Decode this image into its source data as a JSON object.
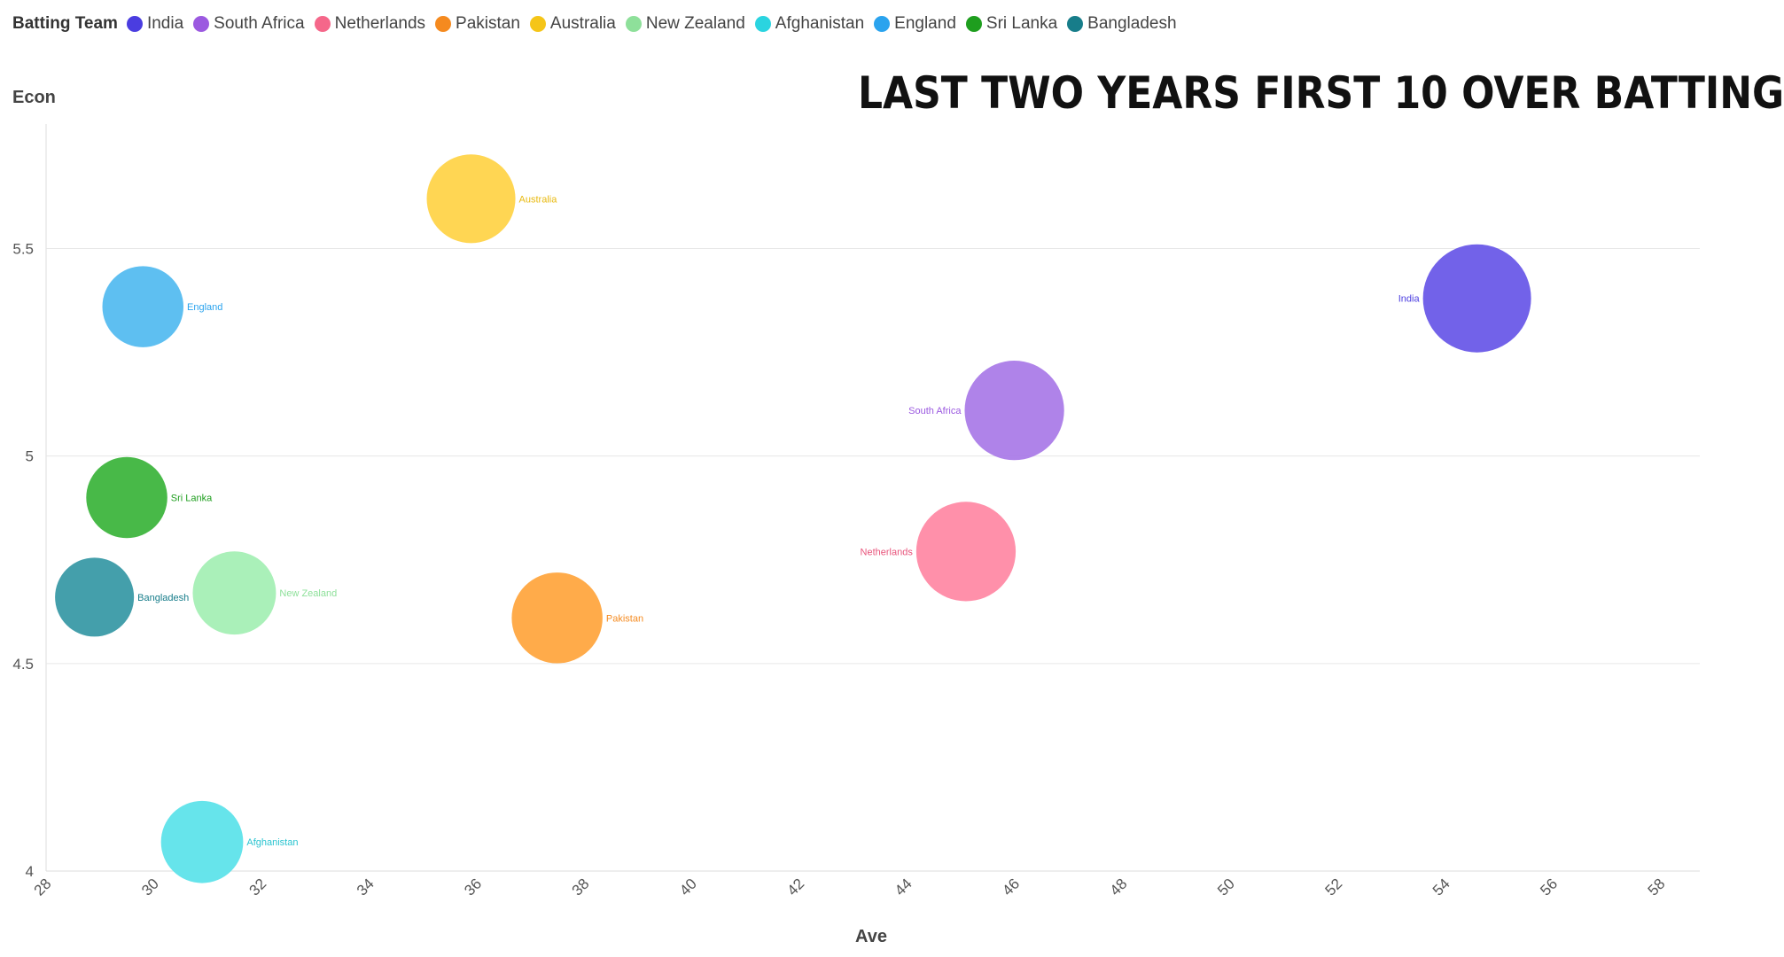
{
  "legend": {
    "title": "Batting Team",
    "items": [
      {
        "label": "India",
        "color": "#4a3de0"
      },
      {
        "label": "South Africa",
        "color": "#9b59e0"
      },
      {
        "label": "Netherlands",
        "color": "#f5678a"
      },
      {
        "label": "Pakistan",
        "color": "#f58a1f"
      },
      {
        "label": "Australia",
        "color": "#f5c518"
      },
      {
        "label": "New Zealand",
        "color": "#8ee09a"
      },
      {
        "label": "Afghanistan",
        "color": "#2ad4e0"
      },
      {
        "label": "England",
        "color": "#2aa3ee"
      },
      {
        "label": "Sri Lanka",
        "color": "#1e9e1e"
      },
      {
        "label": "Bangladesh",
        "color": "#177d8a"
      }
    ]
  },
  "chart_data": {
    "type": "scatter",
    "title": "LAST TWO YEARS FIRST 10 OVER BATTING",
    "xlabel": "Ave",
    "ylabel": "Econ",
    "xlim": [
      28,
      58
    ],
    "ylim": [
      4,
      5.8
    ],
    "xticks": [
      28,
      30,
      32,
      34,
      36,
      38,
      40,
      42,
      44,
      46,
      48,
      50,
      52,
      54,
      56,
      58
    ],
    "yticks": [
      4,
      4.5,
      5,
      5.5
    ],
    "ytick_labels": [
      "4",
      "4.5",
      "5",
      "5.5"
    ],
    "grid": "horizontal",
    "legend_position": "top-left",
    "series": [
      {
        "name": "India",
        "x": 54.6,
        "y": 5.38,
        "size": 1.0,
        "color": "#6a5ae8",
        "label_side": "left"
      },
      {
        "name": "South Africa",
        "x": 46.0,
        "y": 5.11,
        "size": 0.92,
        "color": "#ab7ce8",
        "label_side": "left"
      },
      {
        "name": "Netherlands",
        "x": 45.1,
        "y": 4.77,
        "size": 0.92,
        "color": "#ff8aa5",
        "label_side": "left"
      },
      {
        "name": "Pakistan",
        "x": 37.5,
        "y": 4.61,
        "size": 0.84,
        "color": "#ffa640",
        "label_side": "right"
      },
      {
        "name": "Australia",
        "x": 35.9,
        "y": 5.62,
        "size": 0.82,
        "color": "#ffd44a",
        "label_side": "right"
      },
      {
        "name": "New Zealand",
        "x": 31.5,
        "y": 4.67,
        "size": 0.77,
        "color": "#a5efb5",
        "label_side": "right"
      },
      {
        "name": "Afghanistan",
        "x": 30.9,
        "y": 4.07,
        "size": 0.76,
        "color": "#5ee3ea",
        "label_side": "right"
      },
      {
        "name": "England",
        "x": 29.8,
        "y": 5.36,
        "size": 0.75,
        "color": "#55bcf0",
        "label_side": "right"
      },
      {
        "name": "Sri Lanka",
        "x": 29.5,
        "y": 4.9,
        "size": 0.75,
        "color": "#3eb53e",
        "label_side": "right"
      },
      {
        "name": "Bangladesh",
        "x": 28.9,
        "y": 4.66,
        "size": 0.73,
        "color": "#3a9aa6",
        "label_side": "right"
      }
    ],
    "label_colors": {
      "India": "#4a3de0",
      "South Africa": "#9b59e0",
      "Netherlands": "#e8557c",
      "Pakistan": "#f58a1f",
      "Australia": "#e8b90e",
      "New Zealand": "#8ee09a",
      "Afghanistan": "#2ac4d0",
      "England": "#2aa3ee",
      "Sri Lanka": "#1e9e1e",
      "Bangladesh": "#177d8a"
    }
  }
}
